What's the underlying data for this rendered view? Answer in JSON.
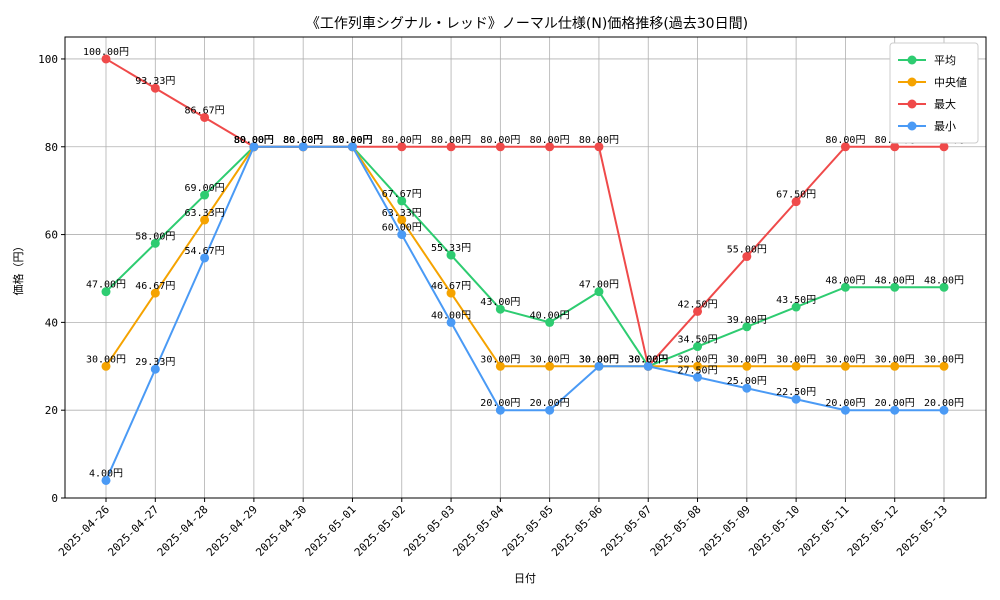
{
  "chart_data": {
    "type": "line",
    "title": "《工作列車シグナル・レッド》ノーマル仕様(N)価格推移(過去30日間)",
    "xlabel": "日付",
    "ylabel": "価格（円）",
    "ylim": [
      0,
      105
    ],
    "yticks": [
      0,
      20,
      40,
      60,
      80,
      100
    ],
    "grid": true,
    "legend_position": "top-right",
    "value_suffix": "円",
    "categories": [
      "2025-04-26",
      "2025-04-27",
      "2025-04-28",
      "2025-04-29",
      "2025-04-30",
      "2025-05-01",
      "2025-05-02",
      "2025-05-03",
      "2025-05-04",
      "2025-05-05",
      "2025-05-06",
      "2025-05-07",
      "2025-05-08",
      "2025-05-09",
      "2025-05-10",
      "2025-05-11",
      "2025-05-12",
      "2025-05-13"
    ],
    "series": [
      {
        "name": "平均",
        "color": "#2ecc71",
        "values": [
          47.0,
          58.0,
          69.0,
          80.0,
          80.0,
          80.0,
          67.67,
          55.33,
          43.0,
          40.0,
          47.0,
          30.0,
          34.5,
          39.0,
          43.5,
          48.0,
          48.0,
          48.0
        ]
      },
      {
        "name": "中央値",
        "color": "#f5a300",
        "values": [
          30.0,
          46.67,
          63.33,
          80.0,
          80.0,
          80.0,
          63.33,
          46.67,
          30.0,
          30.0,
          30.0,
          30.0,
          30.0,
          30.0,
          30.0,
          30.0,
          30.0,
          30.0
        ]
      },
      {
        "name": "最大",
        "color": "#ef4a4a",
        "values": [
          100.0,
          93.33,
          86.67,
          80.0,
          80.0,
          80.0,
          80.0,
          80.0,
          80.0,
          80.0,
          80.0,
          30.0,
          42.5,
          55.0,
          67.5,
          80.0,
          80.0,
          80.0
        ]
      },
      {
        "name": "最小",
        "color": "#4a9af5",
        "values": [
          4.0,
          29.33,
          54.67,
          80.0,
          80.0,
          80.0,
          60.0,
          40.0,
          20.0,
          20.0,
          30.0,
          30.0,
          27.5,
          25.0,
          22.5,
          20.0,
          20.0,
          20.0
        ]
      }
    ]
  }
}
